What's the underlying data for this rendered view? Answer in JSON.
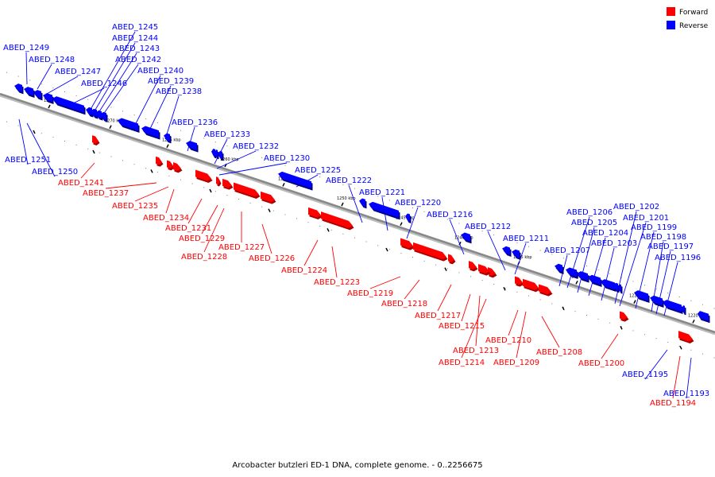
{
  "caption": "Arcobacter butzleri ED-1 DNA, complete genome. - 0..2256675",
  "legend": [
    {
      "label": "Forward",
      "color": "#ff0000"
    },
    {
      "label": "Reverse",
      "color": "#0000ff"
    }
  ],
  "colors": {
    "forward": "#ff0000",
    "reverse": "#0000ff",
    "backbone": "#888888"
  },
  "ticks": [
    "1275 kbp",
    "1270 kbp",
    "1265 kbp",
    "1260 kbp",
    "1255 kbp",
    "1250 kbp",
    "1245 kbp",
    "1240 kbp",
    "1235 kbp",
    "1230 kbp",
    "1225 kbp",
    "1220 kbp"
  ],
  "genes": [
    {
      "name": "ABED_1251",
      "strand": "reverse"
    },
    {
      "name": "ABED_1250",
      "strand": "reverse"
    },
    {
      "name": "ABED_1249",
      "strand": "reverse"
    },
    {
      "name": "ABED_1248",
      "strand": "reverse"
    },
    {
      "name": "ABED_1247",
      "strand": "reverse"
    },
    {
      "name": "ABED_1246",
      "strand": "reverse"
    },
    {
      "name": "ABED_1245",
      "strand": "reverse"
    },
    {
      "name": "ABED_1244",
      "strand": "reverse"
    },
    {
      "name": "ABED_1243",
      "strand": "reverse"
    },
    {
      "name": "ABED_1242",
      "strand": "reverse"
    },
    {
      "name": "ABED_1241",
      "strand": "forward"
    },
    {
      "name": "ABED_1240",
      "strand": "reverse"
    },
    {
      "name": "ABED_1239",
      "strand": "reverse"
    },
    {
      "name": "ABED_1238",
      "strand": "reverse"
    },
    {
      "name": "ABED_1237",
      "strand": "forward"
    },
    {
      "name": "ABED_1236",
      "strand": "reverse"
    },
    {
      "name": "ABED_1235",
      "strand": "forward"
    },
    {
      "name": "ABED_1234",
      "strand": "forward"
    },
    {
      "name": "ABED_1233",
      "strand": "reverse"
    },
    {
      "name": "ABED_1232",
      "strand": "reverse"
    },
    {
      "name": "ABED_1231",
      "strand": "forward"
    },
    {
      "name": "ABED_1230",
      "strand": "reverse"
    },
    {
      "name": "ABED_1229",
      "strand": "forward"
    },
    {
      "name": "ABED_1228",
      "strand": "forward"
    },
    {
      "name": "ABED_1227",
      "strand": "forward"
    },
    {
      "name": "ABED_1226",
      "strand": "forward"
    },
    {
      "name": "ABED_1225",
      "strand": "reverse"
    },
    {
      "name": "ABED_1224",
      "strand": "forward"
    },
    {
      "name": "ABED_1223",
      "strand": "forward"
    },
    {
      "name": "ABED_1222",
      "strand": "reverse"
    },
    {
      "name": "ABED_1221",
      "strand": "reverse"
    },
    {
      "name": "ABED_1220",
      "strand": "reverse"
    },
    {
      "name": "ABED_1219",
      "strand": "forward"
    },
    {
      "name": "ABED_1218",
      "strand": "forward"
    },
    {
      "name": "ABED_1217",
      "strand": "forward"
    },
    {
      "name": "ABED_1216",
      "strand": "reverse"
    },
    {
      "name": "ABED_1215",
      "strand": "forward"
    },
    {
      "name": "ABED_1214",
      "strand": "forward"
    },
    {
      "name": "ABED_1213",
      "strand": "forward"
    },
    {
      "name": "ABED_1212",
      "strand": "reverse"
    },
    {
      "name": "ABED_1211",
      "strand": "reverse"
    },
    {
      "name": "ABED_1210",
      "strand": "forward"
    },
    {
      "name": "ABED_1209",
      "strand": "forward"
    },
    {
      "name": "ABED_1208",
      "strand": "forward"
    },
    {
      "name": "ABED_1207",
      "strand": "reverse"
    },
    {
      "name": "ABED_1206",
      "strand": "reverse"
    },
    {
      "name": "ABED_1205",
      "strand": "reverse"
    },
    {
      "name": "ABED_1204",
      "strand": "reverse"
    },
    {
      "name": "ABED_1203",
      "strand": "reverse"
    },
    {
      "name": "ABED_1202",
      "strand": "reverse"
    },
    {
      "name": "ABED_1201",
      "strand": "reverse"
    },
    {
      "name": "ABED_1200",
      "strand": "forward"
    },
    {
      "name": "ABED_1199",
      "strand": "reverse"
    },
    {
      "name": "ABED_1198",
      "strand": "reverse"
    },
    {
      "name": "ABED_1197",
      "strand": "reverse"
    },
    {
      "name": "ABED_1196",
      "strand": "reverse"
    },
    {
      "name": "ABED_1195",
      "strand": "reverse"
    },
    {
      "name": "ABED_1194",
      "strand": "forward"
    },
    {
      "name": "ABED_1193",
      "strand": "reverse"
    }
  ]
}
